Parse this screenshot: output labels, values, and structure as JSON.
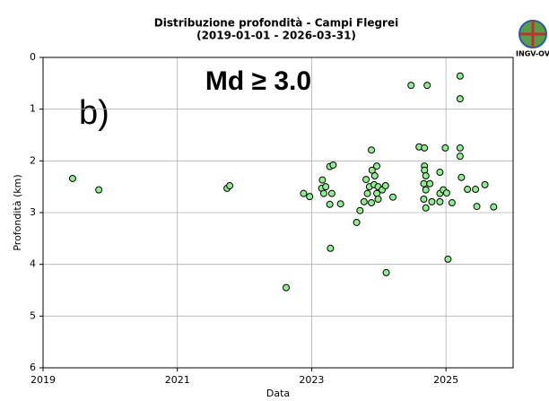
{
  "chart_data": {
    "type": "scatter",
    "title": "Distribuzione profondità - Campi Flegrei",
    "subtitle": "(2019-01-01 - 2026-03-31)",
    "x_label": "Data",
    "y_label": "Profondità (km)",
    "annotations": [
      "b)",
      "Md ≥ 3.0"
    ],
    "logo": "INGV-OV",
    "color": "#90ee90",
    "edge_color": "#000000",
    "xlim": [
      2019,
      2026
    ],
    "xticks": [
      2019,
      2021,
      2023,
      2025
    ],
    "ylim": [
      0,
      6
    ],
    "yticks": [
      0,
      1,
      2,
      3,
      4,
      5,
      6
    ],
    "invert_y": true,
    "grid": true,
    "x": [
      2019.44,
      2019.83,
      2021.74,
      2021.78,
      2022.62,
      2022.88,
      2022.97,
      2023.16,
      2023.15,
      2023.18,
      2023.21,
      2023.27,
      2023.32,
      2023.3,
      2023.27,
      2023.43,
      2023.28,
      2023.67,
      2023.72,
      2023.78,
      2023.81,
      2023.86,
      2023.83,
      2023.89,
      2023.89,
      2023.9,
      2023.94,
      2023.97,
      2023.93,
      2023.97,
      2023.99,
      2023.99,
      2024.05,
      2024.1,
      2024.21,
      2024.11,
      2024.48,
      2024.6,
      2024.68,
      2024.72,
      2024.68,
      2024.68,
      2024.7,
      2024.67,
      2024.7,
      2024.67,
      2024.7,
      2024.76,
      2024.79,
      2024.91,
      2024.91,
      2024.91,
      2024.96,
      2024.99,
      2025.01,
      2025.03,
      2025.09,
      2025.21,
      2025.21,
      2025.21,
      2025.21,
      2025.23,
      2025.32,
      2025.46,
      2025.44,
      2025.58,
      2025.71
    ],
    "values": [
      2.34,
      2.56,
      2.53,
      2.48,
      4.45,
      2.63,
      2.69,
      2.37,
      2.53,
      2.63,
      2.5,
      2.11,
      2.08,
      2.63,
      2.84,
      2.83,
      3.69,
      3.19,
      2.96,
      2.79,
      2.36,
      2.5,
      2.63,
      2.81,
      1.79,
      2.18,
      2.29,
      2.1,
      2.46,
      2.63,
      2.74,
      2.5,
      2.56,
      2.48,
      2.7,
      4.16,
      0.54,
      1.73,
      1.75,
      0.54,
      2.1,
      2.18,
      2.29,
      2.44,
      2.56,
      2.74,
      2.91,
      2.44,
      2.79,
      2.22,
      2.63,
      2.79,
      2.56,
      1.75,
      2.62,
      3.9,
      2.81,
      0.36,
      0.8,
      1.75,
      1.91,
      2.32,
      2.55,
      2.88,
      2.55,
      2.46,
      2.89
    ]
  }
}
